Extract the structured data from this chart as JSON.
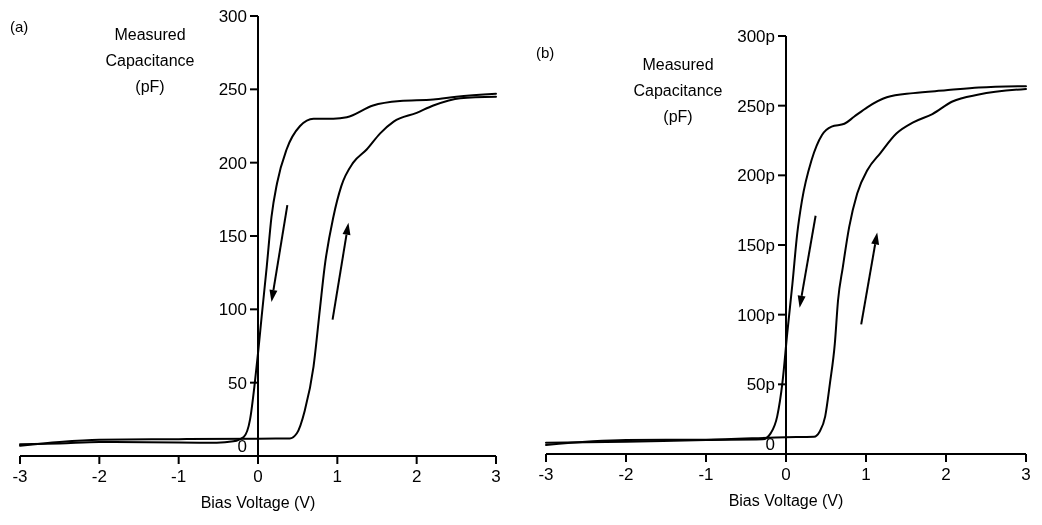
{
  "chart_data": [
    {
      "type": "line",
      "title": "(a)",
      "xlabel": "Bias Voltage (V)",
      "ylabel": "Measured Capacitance (pF)",
      "xlim": [
        -3,
        3
      ],
      "xticks": [
        -3,
        -2,
        -1,
        0,
        1,
        2,
        3
      ],
      "ylim": [
        0,
        300
      ],
      "yticks": [
        0,
        50,
        100,
        150,
        200,
        250,
        300
      ],
      "grid": false,
      "marker": "none",
      "line_style": "solid",
      "series": [
        {
          "color": "#000000",
          "x": [
            -3,
            -2.5,
            -2,
            -1,
            0,
            0.4,
            0.49,
            0.59,
            0.7,
            0.78,
            0.84,
            0.95,
            1.05,
            1.2,
            1.37,
            1.54,
            1.71,
            2.0,
            2.21,
            2.55,
            3.0
          ],
          "values": [
            7,
            9.5,
            11,
            11.5,
            11.8,
            12,
            15.5,
            31,
            61,
            100,
            129,
            163,
            184,
            200,
            209,
            220,
            228,
            234,
            239,
            244,
            245
          ]
        },
        {
          "color": "#000000",
          "x": [
            -3,
            -2.5,
            -2,
            -1,
            -0.52,
            -0.31,
            -0.18,
            -0.1,
            -0.04,
            0.004,
            0.046,
            0.11,
            0.17,
            0.24,
            0.36,
            0.53,
            0.7,
            0.95,
            1.12,
            1.45,
            1.79,
            2.21,
            2.5,
            3.0
          ],
          "values": [
            8,
            8.5,
            9.5,
            9.2,
            9,
            10,
            13,
            25,
            50,
            72,
            95,
            129,
            163,
            186,
            209,
            225,
            230,
            230,
            231,
            239,
            242,
            243,
            245,
            247
          ]
        }
      ]
    },
    {
      "type": "line",
      "title": "(b)",
      "xlabel": "Bias Voltage (V)",
      "ylabel": "Measured Capacitance (pF)",
      "xlim": [
        -3,
        3
      ],
      "xticks": [
        -3,
        -2,
        -1,
        0,
        1,
        2,
        3
      ],
      "ylim": [
        0,
        300
      ],
      "yticks": [
        0,
        {
          "value": 50,
          "label": "50p"
        },
        {
          "value": 100,
          "label": "100p"
        },
        {
          "value": 150,
          "label": "150p"
        },
        {
          "value": 200,
          "label": "200p"
        },
        {
          "value": 250,
          "label": "250p"
        },
        {
          "value": 300,
          "label": "300p"
        }
      ],
      "grid": false,
      "marker": "none",
      "line_style": "solid",
      "series": [
        {
          "color": "#000000",
          "x": [
            -3,
            -2,
            -1,
            0,
            0.35,
            0.42,
            0.49,
            0.55,
            0.61,
            0.65,
            0.71,
            0.79,
            0.89,
            1.02,
            1.18,
            1.38,
            1.59,
            1.83,
            2.08,
            2.41,
            3.0
          ],
          "values": [
            6.5,
            10,
            10.3,
            12,
            12.4,
            16,
            27,
            51,
            79,
            110,
            134,
            163,
            187,
            204,
            216,
            230,
            238,
            244,
            253,
            258,
            262
          ]
        },
        {
          "color": "#000000",
          "x": [
            -3,
            -2,
            -1,
            -0.29,
            -0.19,
            -0.11,
            -0.045,
            0.016,
            0.08,
            0.14,
            0.2,
            0.32,
            0.45,
            0.57,
            0.73,
            0.85,
            1.02,
            1.26,
            1.59,
            2.0,
            2.41,
            3.0
          ],
          "values": [
            8,
            8.8,
            10,
            10.5,
            15,
            27,
            51,
            87,
            122,
            158,
            182,
            211,
            229,
            235,
            237,
            242,
            249,
            256,
            259,
            261,
            263,
            264
          ]
        }
      ]
    }
  ]
}
